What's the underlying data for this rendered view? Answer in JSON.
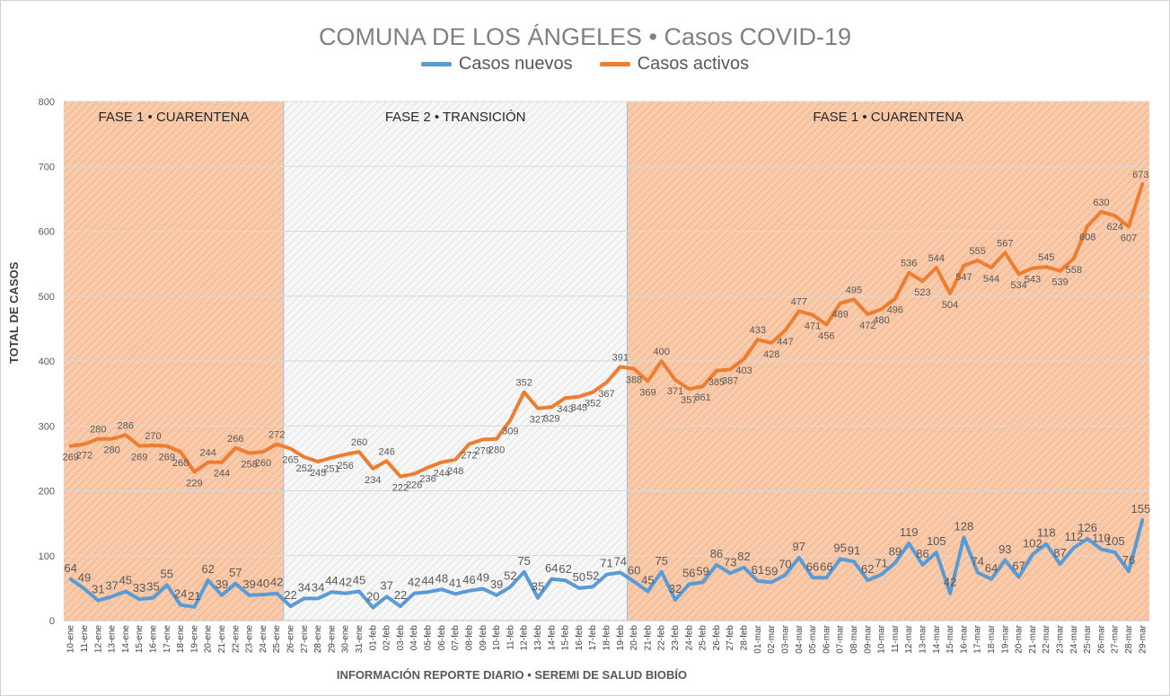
{
  "chart_data": {
    "type": "line",
    "title": "COMUNA DE LOS ÁNGELES • Casos COVID-19",
    "ylabel": "TOTAL DE CASOS",
    "footer": "INFORMACIÓN REPORTE DIARIO • SEREMI DE SALUD BIOBÍO",
    "ylim": [
      0,
      800
    ],
    "yticks": [
      0,
      100,
      200,
      300,
      400,
      500,
      600,
      700,
      800
    ],
    "grid": true,
    "legend": "top",
    "x": [
      "10-ene",
      "11-ene",
      "12-ene",
      "13-ene",
      "14-ene",
      "15-ene",
      "16-ene",
      "17-ene",
      "18-ene",
      "19-ene",
      "20-ene",
      "21-ene",
      "22-ene",
      "23-ene",
      "24-ene",
      "25-ene",
      "26-ene",
      "27-ene",
      "28-ene",
      "29-ene",
      "30-ene",
      "31-ene",
      "01-feb",
      "02-feb",
      "03-feb",
      "04-feb",
      "05-feb",
      "06-feb",
      "07-feb",
      "08-feb",
      "09-feb",
      "10-feb",
      "11-feb",
      "12-feb",
      "13-feb",
      "14-feb",
      "15-feb",
      "16-feb",
      "17-feb",
      "18-feb",
      "19-feb",
      "20-feb",
      "21-feb",
      "22-feb",
      "23-feb",
      "24-feb",
      "25-feb",
      "26-feb",
      "27-feb",
      "28-feb",
      "01-mar",
      "02-mar",
      "03-mar",
      "04-mar",
      "05-mar",
      "06-mar",
      "07-mar",
      "08-mar",
      "09-mar",
      "10-mar",
      "11-mar",
      "12-mar",
      "13-mar",
      "14-mar",
      "15-mar",
      "16-mar",
      "17-mar",
      "18-mar",
      "19-mar",
      "20-mar",
      "21-mar",
      "22-mar",
      "23-mar",
      "24-mar",
      "25-mar",
      "26-mar",
      "27-mar",
      "28-mar",
      "29-mar"
    ],
    "series": [
      {
        "name": "Casos nuevos",
        "color": "#5b9bd5",
        "values": [
          64,
          49,
          31,
          37,
          45,
          33,
          35,
          55,
          24,
          21,
          62,
          39,
          57,
          39,
          40,
          42,
          22,
          34,
          34,
          44,
          42,
          45,
          20,
          37,
          22,
          42,
          44,
          48,
          41,
          46,
          49,
          39,
          52,
          75,
          35,
          64,
          62,
          50,
          52,
          71,
          74,
          60,
          45,
          75,
          32,
          56,
          59,
          86,
          73,
          82,
          61,
          59,
          70,
          97,
          66,
          66,
          95,
          91,
          62,
          71,
          89,
          119,
          86,
          105,
          42,
          128,
          74,
          64,
          93,
          67,
          102,
          118,
          87,
          112,
          126,
          110,
          105,
          76,
          155
        ]
      },
      {
        "name": "Casos activos",
        "color": "#ed7d31",
        "values": [
          269,
          272,
          280,
          280,
          286,
          269,
          270,
          269,
          260,
          229,
          244,
          244,
          266,
          258,
          260,
          272,
          265,
          252,
          245,
          251,
          256,
          260,
          234,
          246,
          222,
          226,
          236,
          244,
          248,
          272,
          279,
          280,
          309,
          352,
          327,
          329,
          343,
          345,
          352,
          367,
          391,
          388,
          369,
          400,
          371,
          357,
          361,
          385,
          387,
          403,
          433,
          428,
          447,
          477,
          471,
          456,
          489,
          495,
          472,
          480,
          496,
          536,
          523,
          544,
          504,
          547,
          555,
          544,
          567,
          534,
          543,
          545,
          539,
          558,
          608,
          630,
          624,
          607,
          673
        ]
      }
    ],
    "phases": [
      {
        "label": "FASE 1 • CUARENTENA",
        "from": "10-ene",
        "to": "25-ene"
      },
      {
        "label": "FASE 2 • TRANSICIÓN",
        "from": "26-ene",
        "to": "19-feb"
      },
      {
        "label": "FASE 1 • CUARENTENA",
        "from": "20-feb",
        "to": "29-mar"
      }
    ]
  }
}
